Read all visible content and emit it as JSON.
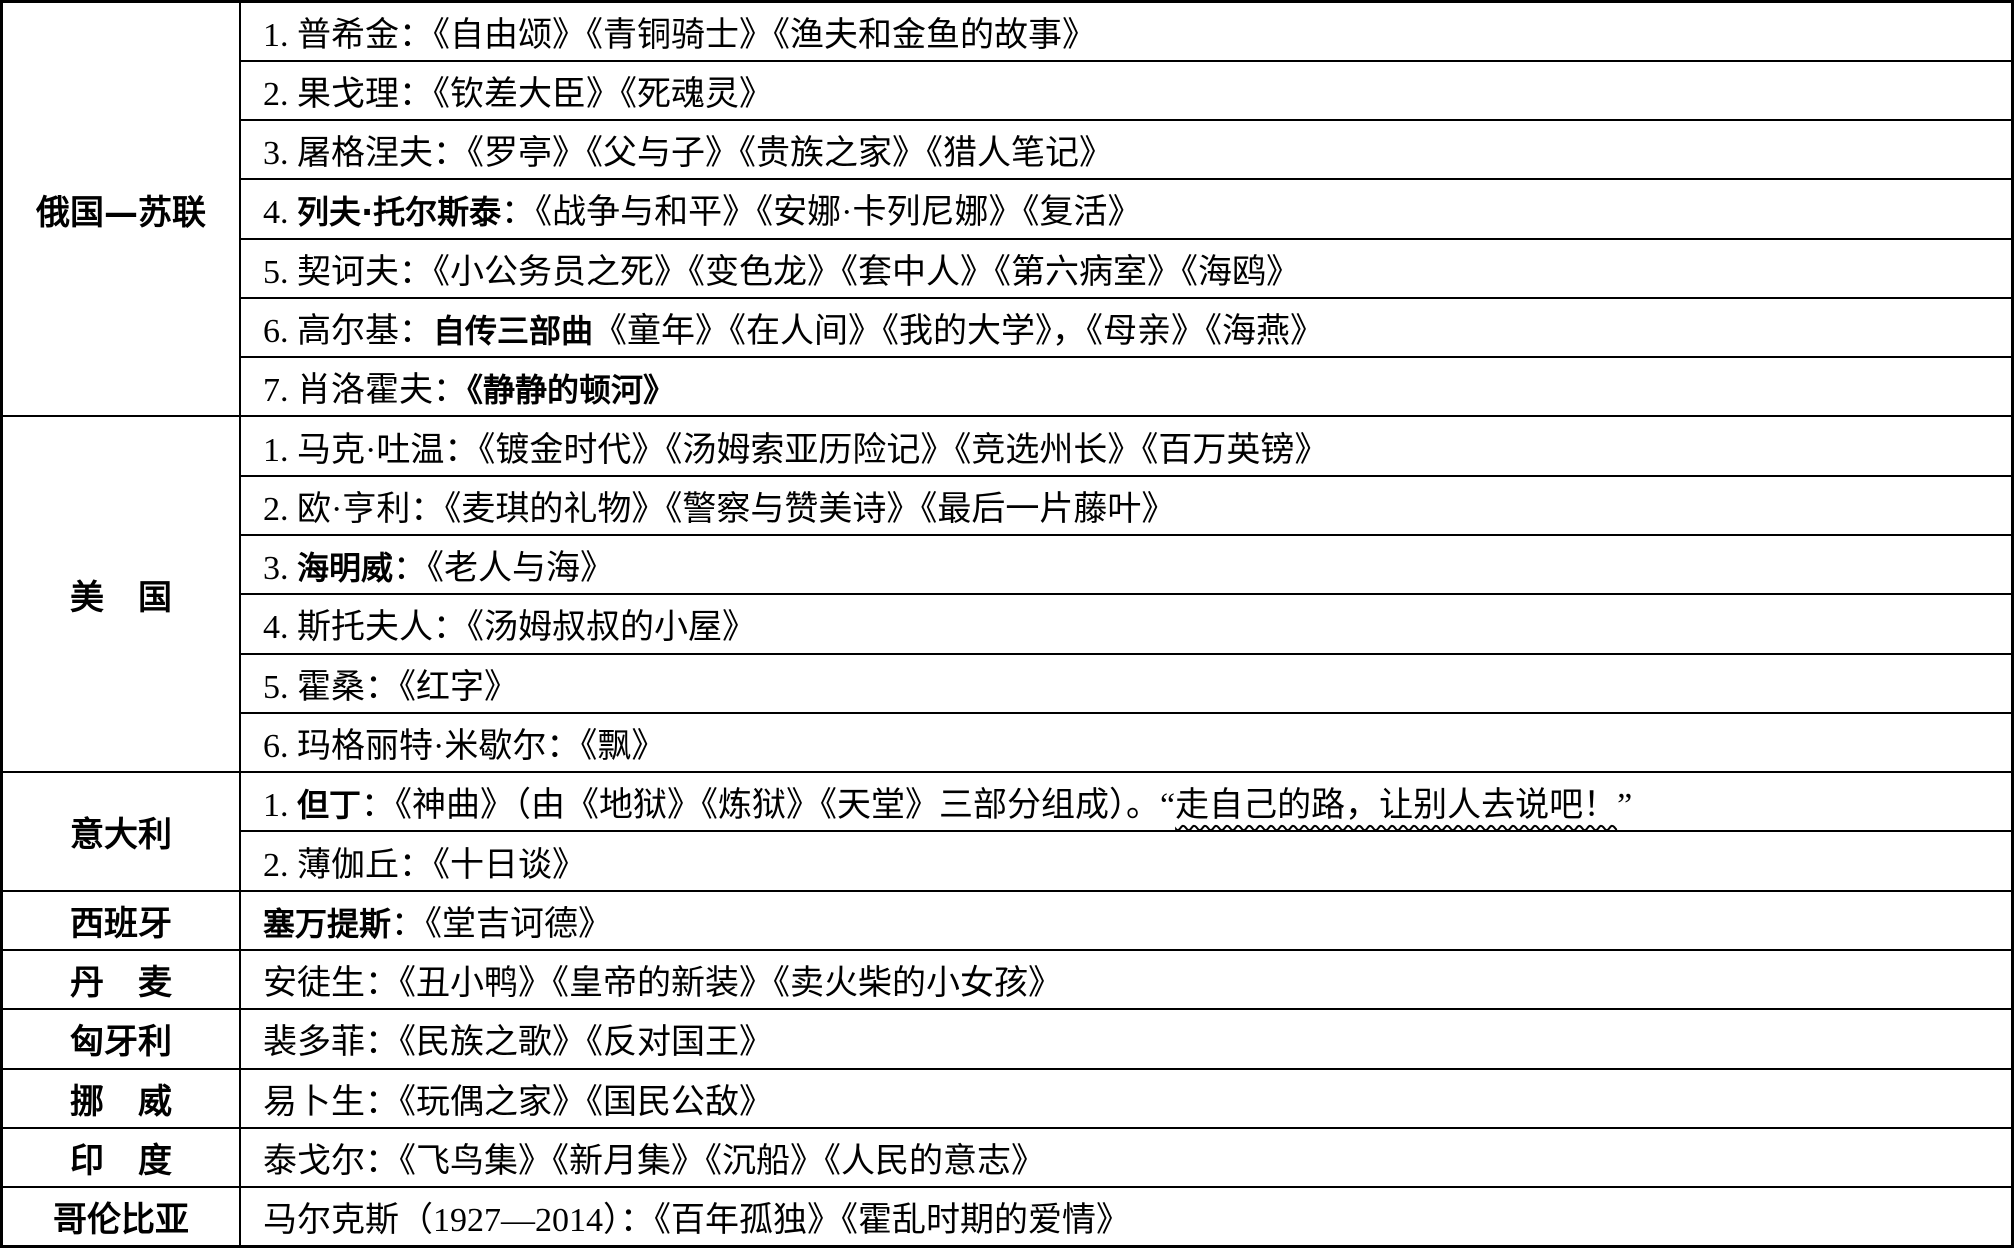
{
  "groups": [
    {
      "country": "俄国—苏联",
      "rows": [
        [
          {
            "text": "1. 普希金：《自由颂》《青铜骑士》《渔夫和金鱼的故事》"
          }
        ],
        [
          {
            "text": "2. 果戈理：《钦差大臣》《死魂灵》"
          }
        ],
        [
          {
            "text": "3. 屠格涅夫：《罗亭》《父与子》《贵族之家》《猎人笔记》"
          }
        ],
        [
          {
            "text": "4. "
          },
          {
            "text": "列夫·托尔斯泰",
            "bold": true
          },
          {
            "text": "：《战争与和平》《安娜·卡列尼娜》《复活》"
          }
        ],
        [
          {
            "text": "5. 契诃夫：《小公务员之死》《变色龙》《套中人》《第六病室》《海鸥》"
          }
        ],
        [
          {
            "text": "6. 高尔基："
          },
          {
            "text": "自传三部曲",
            "bold": true
          },
          {
            "text": "《童年》《在人间》《我的大学》，《母亲》《海燕》"
          }
        ],
        [
          {
            "text": "7. 肖洛霍夫："
          },
          {
            "text": "《静静的顿河》",
            "bold": true
          }
        ]
      ]
    },
    {
      "country": "美　国",
      "rows": [
        [
          {
            "text": "1. 马克·吐温：《镀金时代》《汤姆索亚历险记》《竞选州长》《百万英镑》"
          }
        ],
        [
          {
            "text": "2. 欧·亨利：《麦琪的礼物》《警察与赞美诗》《最后一片藤叶》"
          }
        ],
        [
          {
            "text": "3. "
          },
          {
            "text": "海明威",
            "bold": true
          },
          {
            "text": "：《老人与海》"
          }
        ],
        [
          {
            "text": "4. 斯托夫人：《汤姆叔叔的小屋》"
          }
        ],
        [
          {
            "text": "5. 霍桑：《红字》"
          }
        ],
        [
          {
            "text": "6. 玛格丽特·米歇尔：《飘》"
          }
        ]
      ]
    },
    {
      "country": "意大利",
      "rows": [
        [
          {
            "text": "1. "
          },
          {
            "text": "但丁",
            "bold": true
          },
          {
            "text": "：《神曲》（由《地狱》《炼狱》《天堂》三部分组成）。“"
          },
          {
            "text": "走自己的路，让别人去说吧！",
            "wavy": true
          },
          {
            "text": "”"
          }
        ],
        [
          {
            "text": "2. 薄伽丘：《十日谈》"
          }
        ]
      ]
    },
    {
      "country": "西班牙",
      "rows": [
        [
          {
            "text": "塞万提斯",
            "bold": true
          },
          {
            "text": "：《堂吉诃德》"
          }
        ]
      ]
    },
    {
      "country": "丹　麦",
      "rows": [
        [
          {
            "text": "安徒生：《丑小鸭》《皇帝的新装》《卖火柴的小女孩》"
          }
        ]
      ]
    },
    {
      "country": "匈牙利",
      "rows": [
        [
          {
            "text": "裴多菲：《民族之歌》《反对国王》"
          }
        ]
      ]
    },
    {
      "country": "挪　威",
      "rows": [
        [
          {
            "text": "易卜生：《玩偶之家》《国民公敌》"
          }
        ]
      ]
    },
    {
      "country": "印　度",
      "rows": [
        [
          {
            "text": "泰戈尔：《飞鸟集》《新月集》《沉船》《人民的意志》"
          }
        ]
      ]
    },
    {
      "country": "哥伦比亚",
      "rows": [
        [
          {
            "text": "马尔克斯（1927—2014）：《百年孤独》《霍乱时期的爱情》"
          }
        ]
      ]
    }
  ]
}
